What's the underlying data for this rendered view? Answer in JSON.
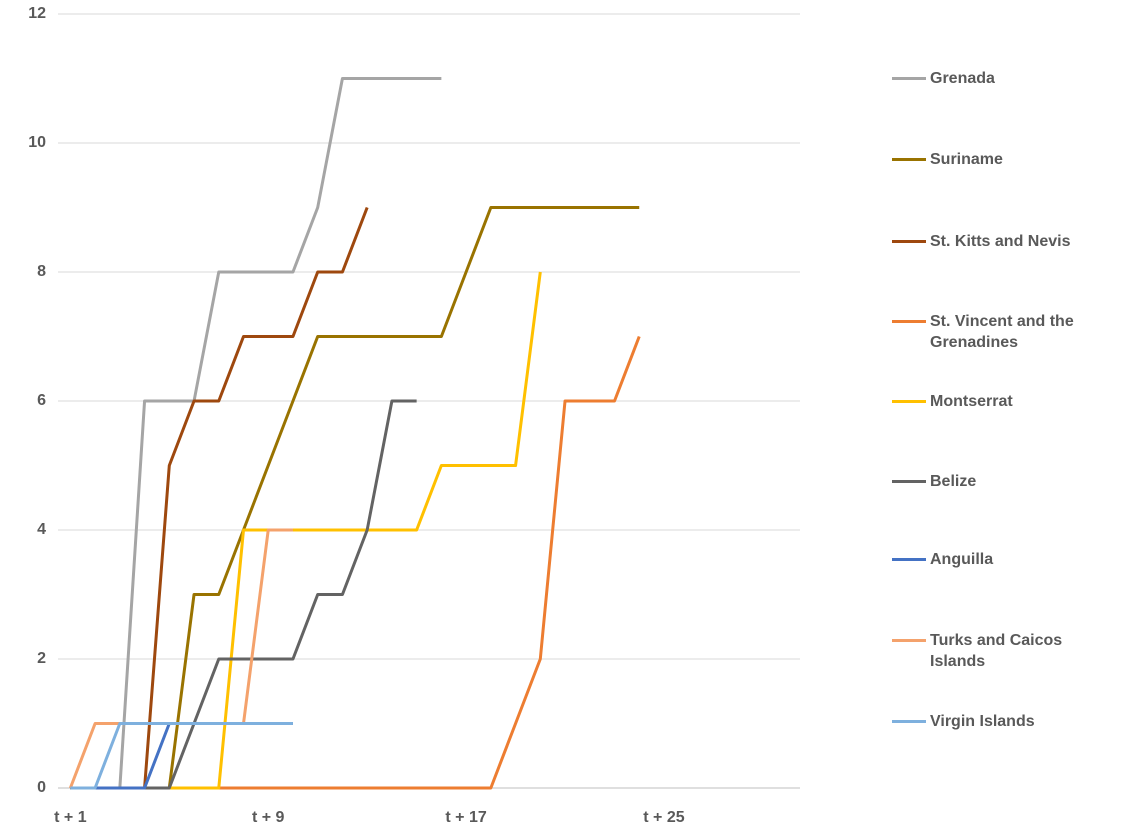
{
  "chart_data": {
    "type": "line",
    "categories": [
      "t + 1",
      null,
      null,
      null,
      null,
      null,
      null,
      null,
      "t + 9",
      null,
      null,
      null,
      null,
      null,
      null,
      null,
      "t + 17",
      null,
      null,
      null,
      null,
      null,
      null,
      null,
      "t + 25",
      null,
      null,
      null,
      null,
      null
    ],
    "ylim": [
      0,
      12
    ],
    "yticks": [
      0,
      2,
      4,
      6,
      8,
      10,
      12
    ],
    "grid": true,
    "legend": "right",
    "series": [
      {
        "name": "Grenada",
        "color": "#a5a5a5",
        "values": [
          0,
          0,
          0,
          6,
          6,
          6,
          8,
          8,
          8,
          8,
          9,
          11,
          11,
          11,
          11,
          11,
          null,
          null,
          null,
          null,
          null,
          null,
          null,
          null,
          null,
          null,
          null,
          null,
          null,
          null
        ]
      },
      {
        "name": "Suriname",
        "color": "#997300",
        "values": [
          0,
          0,
          0,
          0,
          0,
          3,
          3,
          4,
          5,
          6,
          7,
          7,
          7,
          7,
          7,
          7,
          8,
          9,
          9,
          9,
          9,
          9,
          9,
          9,
          null,
          null,
          null,
          null,
          null,
          null
        ]
      },
      {
        "name": "St. Kitts and Nevis",
        "color": "#9e480e",
        "values": [
          0,
          0,
          0,
          0,
          5,
          6,
          6,
          7,
          7,
          7,
          8,
          8,
          9,
          null,
          null,
          null,
          null,
          null,
          null,
          null,
          null,
          null,
          null,
          null,
          null,
          null,
          null,
          null,
          null,
          null
        ]
      },
      {
        "name": "St. Vincent and the Grenadines",
        "color": "#ed7d31",
        "values": [
          0,
          0,
          0,
          0,
          0,
          0,
          0,
          0,
          0,
          0,
          0,
          0,
          0,
          0,
          0,
          0,
          0,
          0,
          1,
          2,
          6,
          6,
          6,
          7,
          null,
          null,
          null,
          null,
          null,
          null
        ]
      },
      {
        "name": "Montserrat",
        "color": "#ffc000",
        "values": [
          0,
          0,
          0,
          0,
          0,
          0,
          0,
          4,
          4,
          4,
          4,
          4,
          4,
          4,
          4,
          5,
          5,
          5,
          5,
          8,
          null,
          null,
          null,
          null,
          null,
          null,
          null,
          null,
          null,
          null
        ]
      },
      {
        "name": "Belize",
        "color": "#636363",
        "values": [
          0,
          0,
          0,
          0,
          0,
          1,
          2,
          2,
          2,
          2,
          3,
          3,
          4,
          6,
          6,
          null,
          null,
          null,
          null,
          null,
          null,
          null,
          null,
          null,
          null,
          null,
          null,
          null,
          null,
          null
        ]
      },
      {
        "name": "Anguilla",
        "color": "#4472c4",
        "values": [
          0,
          0,
          0,
          0,
          1,
          1,
          1,
          1,
          1,
          1,
          null,
          null,
          null,
          null,
          null,
          null,
          null,
          null,
          null,
          null,
          null,
          null,
          null,
          null,
          null,
          null,
          null,
          null,
          null,
          null
        ]
      },
      {
        "name": "Turks and Caicos Islands",
        "color": "#f4a26c",
        "values": [
          0,
          1,
          1,
          1,
          1,
          1,
          1,
          1,
          4,
          4,
          null,
          null,
          null,
          null,
          null,
          null,
          null,
          null,
          null,
          null,
          null,
          null,
          null,
          null,
          null,
          null,
          null,
          null,
          null,
          null
        ]
      },
      {
        "name": "Virgin Islands",
        "color": "#7eb0de",
        "values": [
          0,
          0,
          1,
          1,
          1,
          1,
          1,
          1,
          1,
          1,
          null,
          null,
          null,
          null,
          null,
          null,
          null,
          null,
          null,
          null,
          null,
          null,
          null,
          null,
          null,
          null,
          null,
          null,
          null,
          null
        ]
      }
    ]
  }
}
